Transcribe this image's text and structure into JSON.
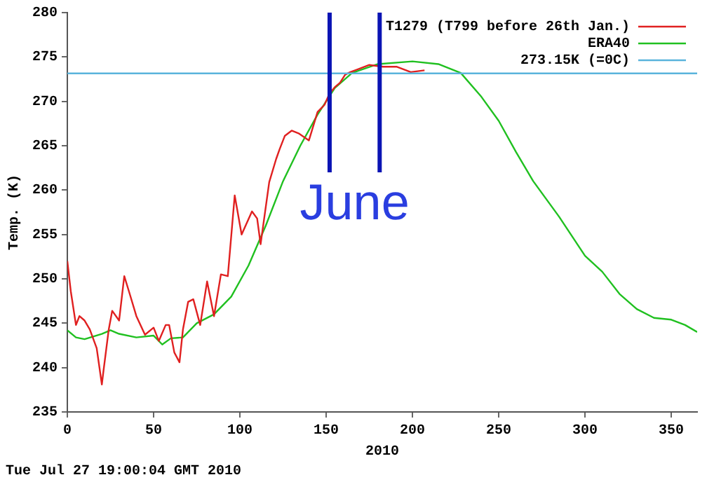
{
  "chart_data": {
    "type": "line",
    "xlabel": "2010",
    "ylabel": "Temp. (K)",
    "xlim": [
      0,
      365
    ],
    "xticks": [
      0,
      50,
      100,
      150,
      200,
      250,
      300,
      350
    ],
    "ylim": [
      235,
      280
    ],
    "yticks": [
      235,
      240,
      245,
      250,
      255,
      260,
      265,
      270,
      275,
      280
    ],
    "legend": "top right",
    "marker": "none",
    "line_style": "solid",
    "series": [
      {
        "name": "T1279 (T799 before 26th Jan.)",
        "color": "#e02020",
        "x": [
          0,
          2,
          5,
          7,
          10,
          13,
          17,
          20,
          21,
          24,
          26,
          30,
          33,
          36,
          40,
          45,
          50,
          53,
          57,
          59,
          62,
          65,
          67,
          70,
          73,
          77,
          81,
          85,
          89,
          93,
          97,
          101,
          107,
          110,
          112,
          117,
          121,
          123,
          126,
          130,
          134,
          140,
          145,
          149,
          152,
          155,
          158,
          161,
          164,
          175,
          183,
          191,
          199,
          207
        ],
        "values": [
          252,
          248.6,
          244.8,
          245.8,
          245.3,
          244.3,
          242.2,
          238.1,
          239.7,
          244.3,
          246.4,
          245.3,
          250.3,
          248.4,
          245.8,
          243.7,
          244.5,
          243,
          244.8,
          244.8,
          241.7,
          240.6,
          244.3,
          247.4,
          247.7,
          244.8,
          249.7,
          245.8,
          250.5,
          250.3,
          259.4,
          255,
          257.6,
          256.8,
          253.9,
          260.9,
          263.5,
          264.6,
          266.1,
          266.7,
          266.4,
          265.6,
          268.8,
          269.6,
          270.9,
          271.6,
          272.1,
          273,
          273.3,
          274.1,
          273.9,
          273.9,
          273.3,
          273.5
        ]
      },
      {
        "name": "ERA40",
        "color": "#20c020",
        "x": [
          0,
          5,
          10,
          20,
          25,
          30,
          40,
          50,
          55,
          60,
          67,
          75,
          85,
          95,
          105,
          115,
          125,
          135,
          145,
          155,
          165,
          180,
          200,
          215,
          228,
          240,
          250,
          260,
          270,
          285,
          300,
          310,
          320,
          330,
          340,
          350,
          358,
          365
        ],
        "values": [
          244.2,
          243.4,
          243.2,
          243.8,
          244.2,
          243.8,
          243.4,
          243.6,
          242.6,
          243.3,
          243.4,
          245,
          246,
          248,
          251.5,
          256,
          261,
          265,
          268.5,
          271.5,
          273.2,
          274.2,
          274.5,
          274.2,
          273.2,
          270.5,
          267.8,
          264.3,
          261,
          257,
          252.6,
          250.8,
          248.3,
          246.6,
          245.6,
          245.4,
          244.8,
          244
        ]
      }
    ],
    "ref_lines": [
      {
        "axis": "y",
        "value": 273.15,
        "label": "273.15K (=0C)",
        "color": "#5ab4dc"
      },
      {
        "axis": "x",
        "value": 152,
        "color": "#0a14b4"
      },
      {
        "axis": "x",
        "value": 181,
        "color": "#0a14b4"
      }
    ],
    "annotations": [
      "June",
      "Tue Jul 27 19:00:04 GMT 2010"
    ]
  }
}
